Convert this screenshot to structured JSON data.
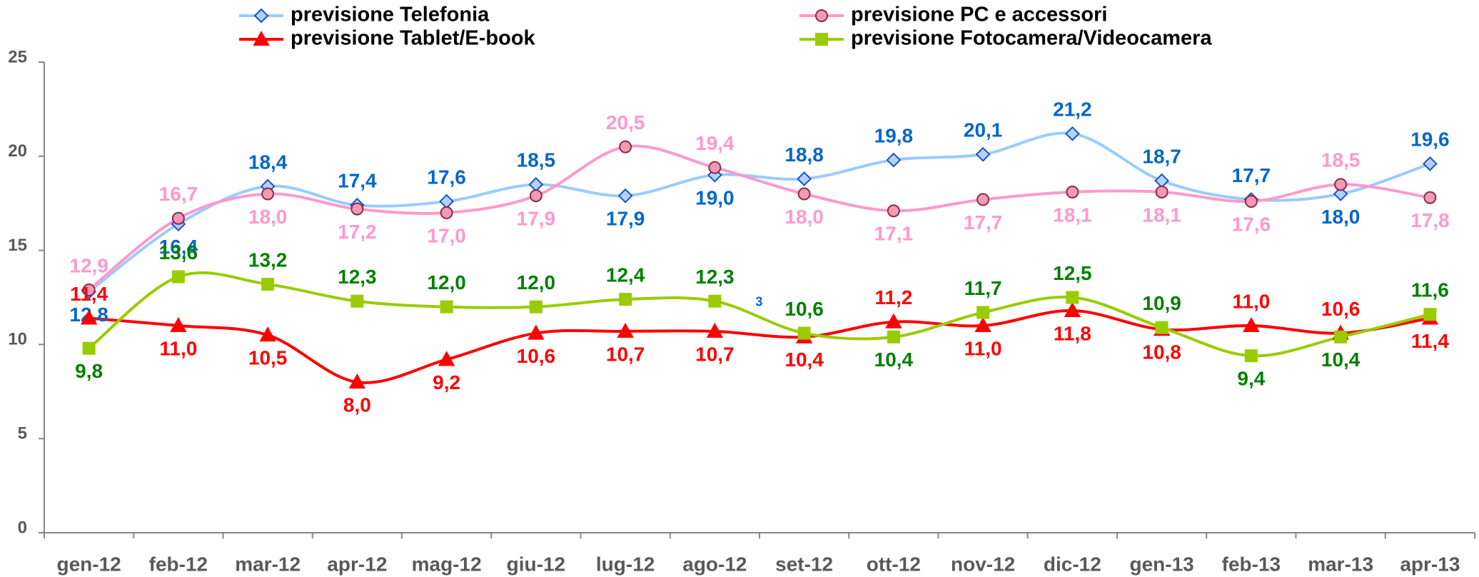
{
  "chart_data": {
    "type": "line",
    "categories": [
      "gen-12",
      "feb-12",
      "mar-12",
      "apr-12",
      "mag-12",
      "giu-12",
      "lug-12",
      "ago-12",
      "set-12",
      "ott-12",
      "nov-12",
      "dic-12",
      "gen-13",
      "feb-13",
      "mar-13",
      "apr-13"
    ],
    "series": [
      {
        "name": "previsione Telefonia",
        "color": "#99ccff",
        "marker": "diamond",
        "marker_fill": "#b4d2ff",
        "marker_stroke": "#1a52c8",
        "label_color": "#0066cc",
        "values": [
          12.8,
          16.4,
          18.4,
          17.4,
          17.6,
          18.5,
          17.9,
          19.0,
          18.8,
          19.8,
          20.1,
          21.2,
          18.7,
          17.7,
          18.0,
          19.6
        ],
        "value_labels": [
          "12,8",
          "16,4",
          "18,4",
          "17,4",
          "17,6",
          "18,5",
          "17,9",
          "19,0",
          "18,8",
          "19,8",
          "20,1",
          "21,2",
          "18,7",
          "17,7",
          "18,0",
          "19,6"
        ]
      },
      {
        "name": "previsione PC e accessori",
        "color": "#ff99cc",
        "marker": "circle",
        "marker_fill": "#f09ab4",
        "marker_stroke": "#8c2a4a",
        "label_color": "#ff99cc",
        "values": [
          12.9,
          16.7,
          18.0,
          17.2,
          17.0,
          17.9,
          20.5,
          19.4,
          18.0,
          17.1,
          17.7,
          18.1,
          18.1,
          17.6,
          18.5,
          17.8
        ],
        "value_labels": [
          "12,9",
          "16,7",
          "18,0",
          "17,2",
          "17,0",
          "17,9",
          "20,5",
          "19,4",
          "18,0",
          "17,1",
          "17,7",
          "18,1",
          "18,1",
          "17,6",
          "18,5",
          "17,8"
        ]
      },
      {
        "name": "previsione Tablet/E-book",
        "color": "#ff0000",
        "marker": "triangle",
        "marker_fill": "#ff0000",
        "marker_stroke": "#ff0000",
        "label_color": "#ff0000",
        "values": [
          11.4,
          11.0,
          10.5,
          8.0,
          9.2,
          10.6,
          10.7,
          10.7,
          10.4,
          11.2,
          11.0,
          11.8,
          10.8,
          11.0,
          10.6,
          11.4
        ],
        "value_labels": [
          "11,4",
          "11,0",
          "10,5",
          "8,0",
          "9,2",
          "10,6",
          "10,7",
          "10,7",
          "10,4",
          "11,2",
          "11,0",
          "11,8",
          "10,8",
          "11,0",
          "10,6",
          "11,4"
        ]
      },
      {
        "name": "previsione Fotocamera/Videocamera",
        "color": "#99cc00",
        "marker": "square",
        "marker_fill": "#99cc00",
        "marker_stroke": "#99cc00",
        "label_color": "#008000",
        "values": [
          9.8,
          13.6,
          13.2,
          12.3,
          12.0,
          12.0,
          12.4,
          12.3,
          10.6,
          10.4,
          11.7,
          12.5,
          10.9,
          9.4,
          10.4,
          11.6
        ],
        "value_labels": [
          "9,8",
          "13,6",
          "13,2",
          "12,3",
          "12,0",
          "12,0",
          "12,4",
          "12,3",
          "10,6",
          "10,4",
          "11,7",
          "12,5",
          "10,9",
          "9,4",
          "10,4",
          "11,6"
        ]
      }
    ],
    "annotations": [
      "3"
    ],
    "ylim": [
      0,
      25
    ],
    "yticks": [
      0,
      5,
      10,
      15,
      20,
      25
    ],
    "grid": false
  }
}
